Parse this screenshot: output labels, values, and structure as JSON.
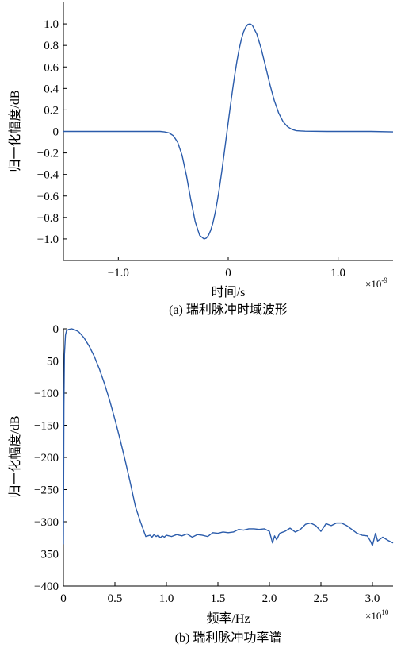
{
  "colors": {
    "line": "#2b5cab",
    "axis": "#000000"
  },
  "chart_data": [
    {
      "type": "line",
      "caption": "(a) 瑞利脉冲时域波形",
      "xlabel": "时间/s",
      "ylabel": "归一化幅度/dB",
      "x_multiplier": "×10",
      "x_multiplier_exp": "-9",
      "xlim": [
        -1.5,
        1.5
      ],
      "ylim": [
        -1.2,
        1.2
      ],
      "grid": false,
      "xticks": [
        {
          "value": -1.0,
          "label": "-1.0"
        },
        {
          "value": 0,
          "label": "0"
        },
        {
          "value": 1.0,
          "label": "1.0"
        }
      ],
      "yticks": [
        {
          "value": 1.0,
          "label": "1.0"
        },
        {
          "value": 0.8,
          "label": "0.8"
        },
        {
          "value": 0.6,
          "label": "0.6"
        },
        {
          "value": 0.4,
          "label": "0.4"
        },
        {
          "value": 0.2,
          "label": "0.2"
        },
        {
          "value": 0,
          "label": "0"
        },
        {
          "value": -0.2,
          "label": "-0.2"
        },
        {
          "value": -0.4,
          "label": "-0.4"
        },
        {
          "value": -0.6,
          "label": "-0.6"
        },
        {
          "value": -0.8,
          "label": "-0.8"
        },
        {
          "value": -1.0,
          "label": "-1.0"
        }
      ],
      "series": [
        {
          "x": [
            -1.5,
            -1.3,
            -1.1,
            -0.9,
            -0.7,
            -0.62,
            -0.58,
            -0.54,
            -0.5,
            -0.46,
            -0.42,
            -0.38,
            -0.34,
            -0.3,
            -0.26,
            -0.22,
            -0.2,
            -0.18,
            -0.16,
            -0.14,
            -0.12,
            -0.1,
            -0.08,
            -0.06,
            -0.04,
            -0.02,
            0,
            0.02,
            0.04,
            0.06,
            0.08,
            0.1,
            0.12,
            0.14,
            0.16,
            0.18,
            0.2,
            0.22,
            0.26,
            0.3,
            0.34,
            0.38,
            0.42,
            0.46,
            0.5,
            0.54,
            0.58,
            0.62,
            0.7,
            0.9,
            1.1,
            1.3,
            1.5
          ],
          "y": [
            0,
            0,
            0,
            0,
            0,
            0,
            -0.004,
            -0.013,
            -0.039,
            -0.101,
            -0.222,
            -0.412,
            -0.638,
            -0.841,
            -0.967,
            -1.0,
            -0.993,
            -0.967,
            -0.921,
            -0.853,
            -0.763,
            -0.652,
            -0.524,
            -0.382,
            -0.229,
            -0.072,
            0.085,
            0.24,
            0.391,
            0.531,
            0.658,
            0.769,
            0.858,
            0.927,
            0.972,
            0.996,
            1.0,
            0.986,
            0.906,
            0.77,
            0.604,
            0.434,
            0.285,
            0.169,
            0.09,
            0.044,
            0.019,
            0.007,
            0.002,
            0,
            0,
            0,
            -0.004
          ]
        }
      ]
    },
    {
      "type": "line",
      "caption": "(b) 瑞利脉冲功率谱",
      "xlabel": "频率/Hz",
      "ylabel": "归一化幅度/dB",
      "x_multiplier": "×10",
      "x_multiplier_exp": "10",
      "xlim": [
        0,
        3.2
      ],
      "ylim": [
        -400,
        0
      ],
      "grid": false,
      "xticks": [
        {
          "value": 0,
          "label": "0"
        },
        {
          "value": 0.5,
          "label": "0.5"
        },
        {
          "value": 1.0,
          "label": "1.0"
        },
        {
          "value": 1.5,
          "label": "1.5"
        },
        {
          "value": 2.0,
          "label": "2.0"
        },
        {
          "value": 2.5,
          "label": "2.5"
        },
        {
          "value": 3.0,
          "label": "3.0"
        }
      ],
      "yticks": [
        {
          "value": 0,
          "label": "0"
        },
        {
          "value": -50,
          "label": "-50"
        },
        {
          "value": -100,
          "label": "-100"
        },
        {
          "value": -150,
          "label": "-150"
        },
        {
          "value": -200,
          "label": "-200"
        },
        {
          "value": -250,
          "label": "-250"
        },
        {
          "value": -300,
          "label": "-300"
        },
        {
          "value": -350,
          "label": "-350"
        },
        {
          "value": -400,
          "label": "-400"
        }
      ],
      "series": [
        {
          "x": [
            0,
            0.005,
            0.01,
            0.02,
            0.03,
            0.05,
            0.08,
            0.1,
            0.13,
            0.15,
            0.2,
            0.25,
            0.3,
            0.35,
            0.4,
            0.45,
            0.5,
            0.55,
            0.6,
            0.65,
            0.7,
            0.75,
            0.8,
            0.82,
            0.84,
            0.86,
            0.88,
            0.9,
            0.92,
            0.94,
            0.96,
            0.98,
            1.0,
            1.05,
            1.1,
            1.15,
            1.2,
            1.25,
            1.3,
            1.35,
            1.4,
            1.45,
            1.5,
            1.55,
            1.6,
            1.65,
            1.7,
            1.75,
            1.8,
            1.85,
            1.9,
            1.95,
            2.0,
            2.03,
            2.05,
            2.07,
            2.1,
            2.15,
            2.2,
            2.25,
            2.3,
            2.35,
            2.4,
            2.45,
            2.5,
            2.55,
            2.6,
            2.65,
            2.7,
            2.75,
            2.8,
            2.85,
            2.9,
            2.95,
            2.98,
            3.0,
            3.03,
            3.05,
            3.1,
            3.15,
            3.2
          ],
          "y": [
            -335,
            -120,
            -40,
            -10,
            -3,
            -1,
            0,
            -1,
            -3,
            -5,
            -14,
            -27,
            -43,
            -63,
            -86,
            -112,
            -141,
            -172,
            -205,
            -240,
            -277,
            -301,
            -323,
            -322,
            -321,
            -324,
            -320,
            -323,
            -321,
            -325,
            -322,
            -324,
            -321,
            -323,
            -320,
            -322,
            -319,
            -324,
            -320,
            -321,
            -323,
            -317,
            -318,
            -316,
            -317,
            -316,
            -312,
            -313,
            -311,
            -311,
            -312,
            -311,
            -315,
            -333,
            -322,
            -328,
            -318,
            -315,
            -310,
            -316,
            -312,
            -304,
            -302,
            -306,
            -315,
            -303,
            -306,
            -302,
            -302,
            -306,
            -312,
            -318,
            -321,
            -322,
            -330,
            -337,
            -318,
            -330,
            -324,
            -329,
            -333
          ]
        }
      ]
    }
  ]
}
